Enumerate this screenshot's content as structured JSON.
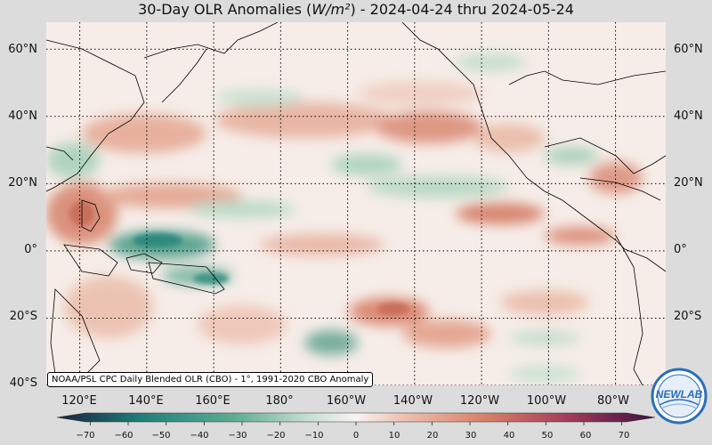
{
  "title": {
    "prefix": "30-Day OLR Anomalies (",
    "unit": "W/m²",
    "suffix": ") - 2024-04-24 thru 2024-05-24"
  },
  "credit": "NOAA/PSL CPC Daily Blended OLR (CBO) - 1°, 1991-2020 CBO Anomaly",
  "axes": {
    "lat_labels": [
      "60°N",
      "40°N",
      "20°N",
      "0°",
      "20°S",
      "40°S"
    ],
    "lat_values": [
      60,
      40,
      20,
      0,
      -20,
      -40
    ],
    "lon_labels": [
      "120°E",
      "140°E",
      "160°E",
      "180°",
      "160°W",
      "140°W",
      "120°W",
      "100°W",
      "80°W"
    ],
    "lon_values": [
      120,
      140,
      160,
      180,
      200,
      220,
      240,
      260,
      280
    ],
    "lon_range": [
      110,
      295
    ],
    "lat_range": [
      -40,
      68
    ]
  },
  "colorbar": {
    "ticks": [
      "−70",
      "−60",
      "−50",
      "−40",
      "−30",
      "−20",
      "−10",
      "0",
      "10",
      "20",
      "30",
      "40",
      "50",
      "60",
      "70"
    ],
    "tick_values": [
      -70,
      -60,
      -50,
      -40,
      -30,
      -20,
      -10,
      0,
      10,
      20,
      30,
      40,
      50,
      60,
      70
    ],
    "range": [
      -75,
      75
    ],
    "colors": {
      "neg_extreme": "#1a1f3f",
      "neg_strong": "#1f7f7a",
      "neg_mid": "#5fae93",
      "neg_weak": "#c6e0cf",
      "zero": "#f8f3f0",
      "pos_weak": "#ecc1b0",
      "pos_mid": "#d87e66",
      "pos_strong": "#a03a5a",
      "pos_extreme": "#3d0f3f"
    }
  },
  "logo": {
    "text": "NEWLAB",
    "ring_color": "#2a6fb8"
  },
  "map": {
    "background": "#f6ede8",
    "grid_style": "dotted",
    "coast_color": "#000000"
  }
}
